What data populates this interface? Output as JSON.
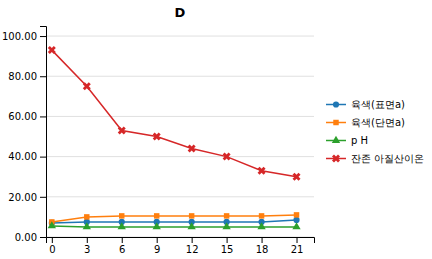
{
  "chart_data": {
    "type": "line",
    "title": "D",
    "x": [
      0,
      3,
      6,
      9,
      12,
      15,
      18,
      21
    ],
    "series": [
      {
        "name": "육색(표면a)",
        "marker": "circle",
        "values": [
          7.0,
          7.5,
          7.5,
          7.5,
          7.5,
          7.5,
          7.5,
          8.5
        ]
      },
      {
        "name": "육색(단면a)",
        "marker": "square",
        "values": [
          7.5,
          10.0,
          10.5,
          10.5,
          10.5,
          10.5,
          10.5,
          11.0
        ]
      },
      {
        "name": "p H",
        "marker": "triangle",
        "values": [
          5.5,
          5.0,
          5.0,
          5.0,
          5.0,
          5.0,
          5.0,
          5.0
        ]
      },
      {
        "name": "잔존 아질산이온",
        "marker": "x",
        "values": [
          93.0,
          75.0,
          53.0,
          50.0,
          44.0,
          40.0,
          33.0,
          30.0
        ]
      }
    ],
    "xlim": [
      -0.5,
      22.5
    ],
    "xticks": [
      0,
      3,
      6,
      9,
      12,
      15,
      18,
      21
    ],
    "ylim": [
      0,
      105
    ],
    "yticks": [
      {
        "value": 0,
        "label": "0.00"
      },
      {
        "value": 20,
        "label": "20.00"
      },
      {
        "value": 40,
        "label": "40.00"
      },
      {
        "value": 60,
        "label": "60.00"
      },
      {
        "value": 80,
        "label": "80.00"
      },
      {
        "value": 100,
        "label": "100.00"
      }
    ],
    "grid": true,
    "legend": "right"
  }
}
